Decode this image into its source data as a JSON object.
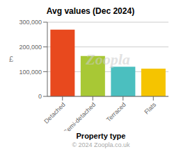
{
  "chart_data": {
    "type": "bar",
    "title": "Avg values (Dec 2024)",
    "categories": [
      "Detached",
      "Semi-detached",
      "Terraced",
      "Flats"
    ],
    "values": [
      270000,
      163000,
      120000,
      112000
    ],
    "colors": [
      "#e8491e",
      "#a8c835",
      "#4bbfbf",
      "#f5c400"
    ],
    "xlabel": "Property type",
    "ylabel": "£",
    "ylim": [
      0,
      300000
    ],
    "yticks": [
      0,
      {
        "value": 100000,
        "label": "100,000"
      },
      {
        "value": 200000,
        "label": "200,000"
      },
      {
        "value": 300000,
        "label": "300,000"
      }
    ],
    "grid": true,
    "annotations": [
      "Zoopla",
      "© 2024 Zoopla.co.uk"
    ]
  }
}
